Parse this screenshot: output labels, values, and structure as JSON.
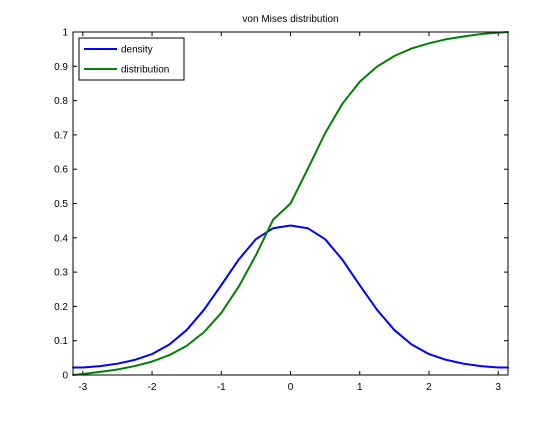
{
  "chart_data": {
    "type": "line",
    "title": "von Mises distribution",
    "xlabel": "",
    "ylabel": "",
    "xlim": [
      -3.14159,
      3.14159
    ],
    "ylim": [
      0,
      1
    ],
    "xticks": [
      -3,
      -2,
      -1,
      0,
      1,
      2,
      3
    ],
    "xtick_labels": [
      "-3",
      "-2",
      "-1",
      "0",
      "1",
      "2",
      "3"
    ],
    "yticks": [
      0,
      0.1,
      0.2,
      0.3,
      0.4,
      0.5,
      0.6,
      0.7,
      0.8,
      0.9,
      1
    ],
    "ytick_labels": [
      "0",
      "0.1",
      "0.2",
      "0.3",
      "0.4",
      "0.5",
      "0.6",
      "0.7",
      "0.8",
      "0.9",
      "1"
    ],
    "grid": false,
    "legend_position": "top-left",
    "series": [
      {
        "name": "density",
        "color": "#0000ff",
        "x": [
          -3.14,
          -3.0,
          -2.75,
          -2.5,
          -2.25,
          -2.0,
          -1.75,
          -1.5,
          -1.25,
          -1.0,
          -0.75,
          -0.5,
          -0.25,
          0.0,
          0.25,
          0.5,
          0.75,
          1.0,
          1.25,
          1.5,
          1.75,
          2.0,
          2.25,
          2.5,
          2.75,
          3.0,
          3.14
        ],
        "y": [
          0.022,
          0.022,
          0.026,
          0.033,
          0.044,
          0.061,
          0.089,
          0.131,
          0.19,
          0.262,
          0.336,
          0.396,
          0.428,
          0.436,
          0.428,
          0.396,
          0.336,
          0.262,
          0.19,
          0.131,
          0.089,
          0.061,
          0.044,
          0.033,
          0.026,
          0.022,
          0.022
        ]
      },
      {
        "name": "distribution",
        "color": "#008000",
        "x": [
          -3.14,
          -3.0,
          -2.75,
          -2.5,
          -2.25,
          -2.0,
          -1.75,
          -1.5,
          -1.25,
          -1.0,
          -0.75,
          -0.5,
          -0.25,
          0.0,
          0.25,
          0.5,
          0.75,
          1.0,
          1.25,
          1.5,
          1.75,
          2.0,
          2.25,
          2.5,
          2.75,
          3.0,
          3.14
        ],
        "y": [
          0.0,
          0.003,
          0.009,
          0.016,
          0.026,
          0.039,
          0.058,
          0.085,
          0.125,
          0.181,
          0.257,
          0.349,
          0.453,
          0.5,
          0.601,
          0.705,
          0.791,
          0.855,
          0.899,
          0.93,
          0.952,
          0.967,
          0.979,
          0.987,
          0.994,
          0.998,
          1.0
        ]
      }
    ]
  }
}
